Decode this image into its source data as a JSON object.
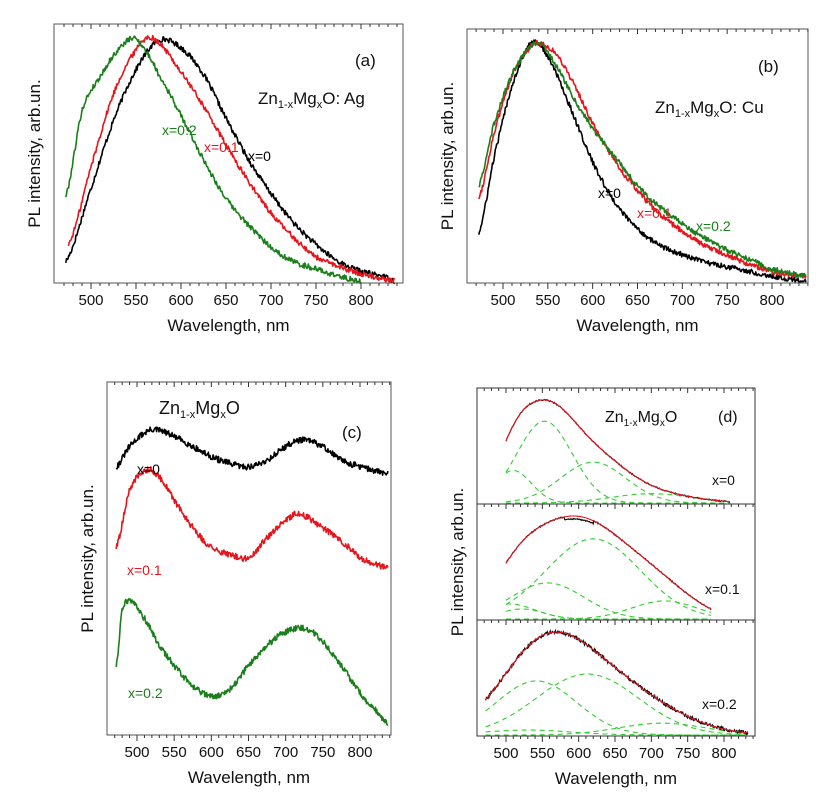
{
  "figure": {
    "panels": [
      "(a)",
      "(b)",
      "(c)",
      "(d)"
    ]
  },
  "colors": {
    "x0": "#000000",
    "x01": "#e8131b",
    "x02": "#1a7f1a",
    "fit": "#e8131b",
    "component": "#33cc33"
  },
  "chart_data": [
    {
      "id": "a",
      "type": "line",
      "panel_label": "(a)",
      "title": "Zn1-xMgxO: Ag",
      "title_parts": {
        "base1": "Zn",
        "sub1": "1-x",
        "base2": "Mg",
        "sub2": "x",
        "base3": "O: Ag"
      },
      "xlabel": "Wavelength, nm",
      "ylabel": "PL intensity, arb.un.",
      "xlim": [
        460,
        840
      ],
      "ylim": [
        0,
        1.0
      ],
      "xticks": [
        500,
        550,
        600,
        650,
        700,
        750,
        800
      ],
      "yticks": [],
      "grid": false,
      "series": [
        {
          "name": "x=0",
          "color": "#000000",
          "peak_nm": 575,
          "x_range": [
            472,
            838
          ],
          "points": [
            [
              472,
              0.08
            ],
            [
              500,
              0.38
            ],
            [
              525,
              0.66
            ],
            [
              550,
              0.87
            ],
            [
              575,
              0.99
            ],
            [
              600,
              0.96
            ],
            [
              625,
              0.85
            ],
            [
              650,
              0.67
            ],
            [
              675,
              0.5
            ],
            [
              700,
              0.36
            ],
            [
              725,
              0.24
            ],
            [
              750,
              0.15
            ],
            [
              775,
              0.08
            ],
            [
              800,
              0.04
            ],
            [
              825,
              0.02
            ],
            [
              838,
              0.0
            ]
          ]
        },
        {
          "name": "x=0.1",
          "color": "#e8131b",
          "peak_nm": 563,
          "x_range": [
            475,
            838
          ],
          "points": [
            [
              475,
              0.15
            ],
            [
              500,
              0.47
            ],
            [
              525,
              0.77
            ],
            [
              550,
              0.95
            ],
            [
              563,
              1.0
            ],
            [
              575,
              0.98
            ],
            [
              600,
              0.86
            ],
            [
              625,
              0.72
            ],
            [
              650,
              0.56
            ],
            [
              675,
              0.41
            ],
            [
              700,
              0.28
            ],
            [
              725,
              0.18
            ],
            [
              750,
              0.1
            ],
            [
              775,
              0.06
            ],
            [
              800,
              0.03
            ],
            [
              838,
              0.0
            ]
          ]
        },
        {
          "name": "x=0.2",
          "color": "#1a7f1a",
          "peak_nm": 548,
          "x_range": [
            472,
            800
          ],
          "points": [
            [
              472,
              0.35
            ],
            [
              490,
              0.7
            ],
            [
              510,
              0.84
            ],
            [
              530,
              0.95
            ],
            [
              548,
              1.0
            ],
            [
              560,
              0.95
            ],
            [
              575,
              0.85
            ],
            [
              600,
              0.68
            ],
            [
              625,
              0.5
            ],
            [
              650,
              0.34
            ],
            [
              675,
              0.23
            ],
            [
              700,
              0.14
            ],
            [
              725,
              0.08
            ],
            [
              750,
              0.05
            ],
            [
              775,
              0.02
            ],
            [
              800,
              0.0
            ]
          ]
        }
      ],
      "annotations": [
        {
          "text": "x=0.2",
          "color": "#1a7f1a"
        },
        {
          "text": "x=0.1",
          "color": "#e8131b"
        },
        {
          "text": "x=0",
          "color": "#000000"
        }
      ]
    },
    {
      "id": "b",
      "type": "line",
      "panel_label": "(b)",
      "title": "Zn1-xMgxO: Cu",
      "title_parts": {
        "base1": "Zn",
        "sub1": "1-x",
        "base2": "Mg",
        "sub2": "x",
        "base3": "O: Cu"
      },
      "xlabel": "Wavelength, nm",
      "ylabel": "PL intensity, arb.un.",
      "xlim": [
        460,
        840
      ],
      "ylim": [
        0,
        1.0
      ],
      "xticks": [
        500,
        550,
        600,
        650,
        700,
        750,
        800
      ],
      "yticks": [],
      "grid": false,
      "series": [
        {
          "name": "x=0",
          "color": "#000000",
          "peak_nm": 532,
          "x_range": [
            473,
            838
          ],
          "points": [
            [
              473,
              0.2
            ],
            [
              490,
              0.52
            ],
            [
              510,
              0.82
            ],
            [
              532,
              1.0
            ],
            [
              550,
              0.94
            ],
            [
              575,
              0.73
            ],
            [
              600,
              0.5
            ],
            [
              625,
              0.33
            ],
            [
              650,
              0.22
            ],
            [
              675,
              0.15
            ],
            [
              700,
              0.11
            ],
            [
              725,
              0.08
            ],
            [
              750,
              0.06
            ],
            [
              775,
              0.04
            ],
            [
              800,
              0.02
            ],
            [
              838,
              0.0
            ]
          ]
        },
        {
          "name": "x=0.1",
          "color": "#e8131b",
          "peak_nm": 540,
          "x_range": [
            473,
            838
          ],
          "points": [
            [
              473,
              0.35
            ],
            [
              490,
              0.62
            ],
            [
              510,
              0.86
            ],
            [
              530,
              0.98
            ],
            [
              540,
              1.0
            ],
            [
              560,
              0.95
            ],
            [
              580,
              0.82
            ],
            [
              600,
              0.66
            ],
            [
              625,
              0.5
            ],
            [
              650,
              0.38
            ],
            [
              675,
              0.28
            ],
            [
              700,
              0.21
            ],
            [
              725,
              0.15
            ],
            [
              750,
              0.11
            ],
            [
              775,
              0.07
            ],
            [
              800,
              0.04
            ],
            [
              838,
              0.02
            ]
          ]
        },
        {
          "name": "x=0.2",
          "color": "#1a7f1a",
          "peak_nm": 538,
          "x_range": [
            473,
            838
          ],
          "points": [
            [
              473,
              0.4
            ],
            [
              490,
              0.66
            ],
            [
              510,
              0.87
            ],
            [
              538,
              1.0
            ],
            [
              560,
              0.9
            ],
            [
              580,
              0.76
            ],
            [
              600,
              0.64
            ],
            [
              625,
              0.52
            ],
            [
              650,
              0.4
            ],
            [
              675,
              0.31
            ],
            [
              700,
              0.24
            ],
            [
              725,
              0.18
            ],
            [
              750,
              0.13
            ],
            [
              775,
              0.09
            ],
            [
              800,
              0.05
            ],
            [
              838,
              0.02
            ]
          ]
        }
      ],
      "annotations": [
        {
          "text": "x=0",
          "color": "#000000"
        },
        {
          "text": "x=0.1",
          "color": "#e8131b"
        },
        {
          "text": "x=0.2",
          "color": "#1a7f1a"
        }
      ]
    },
    {
      "id": "c",
      "type": "line",
      "panel_label": "(c)",
      "title": "Zn1-xMgxO",
      "title_parts": {
        "base1": "Zn",
        "sub1": "1-x",
        "base2": "Mg",
        "sub2": "x",
        "base3": "O"
      },
      "xlabel": "Wavelength, nm",
      "ylabel": "PL intensity, arb.un.",
      "xlim": [
        460,
        840
      ],
      "ylim": [
        0,
        1.0
      ],
      "xticks": [
        500,
        550,
        600,
        650,
        700,
        750,
        800
      ],
      "yticks": [],
      "grid": false,
      "stacked_offset": true,
      "series": [
        {
          "name": "x=0",
          "color": "#000000",
          "peaks_nm": [
            525,
            722
          ],
          "x_range": [
            472,
            838
          ],
          "points": [
            [
              472,
              0.79
            ],
            [
              490,
              0.85
            ],
            [
              510,
              0.89
            ],
            [
              525,
              0.9
            ],
            [
              550,
              0.88
            ],
            [
              575,
              0.85
            ],
            [
              600,
              0.82
            ],
            [
              625,
              0.8
            ],
            [
              650,
              0.79
            ],
            [
              675,
              0.81
            ],
            [
              700,
              0.85
            ],
            [
              722,
              0.87
            ],
            [
              750,
              0.85
            ],
            [
              775,
              0.81
            ],
            [
              800,
              0.79
            ],
            [
              838,
              0.77
            ]
          ]
        },
        {
          "name": "x=0.1",
          "color": "#e8131b",
          "peaks_nm": [
            512,
            718
          ],
          "x_range": [
            472,
            838
          ],
          "points": [
            [
              472,
              0.55
            ],
            [
              490,
              0.72
            ],
            [
              512,
              0.78
            ],
            [
              530,
              0.76
            ],
            [
              550,
              0.69
            ],
            [
              575,
              0.61
            ],
            [
              600,
              0.55
            ],
            [
              625,
              0.53
            ],
            [
              650,
              0.52
            ],
            [
              675,
              0.58
            ],
            [
              700,
              0.63
            ],
            [
              718,
              0.65
            ],
            [
              750,
              0.61
            ],
            [
              775,
              0.57
            ],
            [
              800,
              0.52
            ],
            [
              838,
              0.49
            ]
          ]
        },
        {
          "name": "x=0.2",
          "color": "#1a7f1a",
          "peaks_nm": [
            490,
            728
          ],
          "x_range": [
            472,
            838
          ],
          "points": [
            [
              472,
              0.2
            ],
            [
              480,
              0.36
            ],
            [
              490,
              0.39
            ],
            [
              510,
              0.34
            ],
            [
              530,
              0.26
            ],
            [
              550,
              0.2
            ],
            [
              575,
              0.14
            ],
            [
              600,
              0.11
            ],
            [
              625,
              0.13
            ],
            [
              650,
              0.2
            ],
            [
              675,
              0.26
            ],
            [
              700,
              0.3
            ],
            [
              728,
              0.31
            ],
            [
              750,
              0.27
            ],
            [
              775,
              0.2
            ],
            [
              800,
              0.12
            ],
            [
              820,
              0.07
            ],
            [
              838,
              0.03
            ]
          ]
        }
      ],
      "annotations": [
        {
          "text": "x=0",
          "color": "#000000"
        },
        {
          "text": "x=0.1",
          "color": "#e8131b"
        },
        {
          "text": "x=0.2",
          "color": "#1a7f1a"
        }
      ]
    },
    {
      "id": "d",
      "type": "line",
      "panel_label": "(d)",
      "title": "Zn1-xMgxO",
      "title_parts": {
        "base1": "Zn",
        "sub1": "1-x",
        "base2": "Mg",
        "sub2": "x",
        "base3": "O"
      },
      "xlabel": "Wavelength, nm",
      "ylabel": "PL intensity, arb.un.",
      "xlim": [
        460,
        840
      ],
      "xticks": [
        500,
        550,
        600,
        650,
        700,
        750,
        800
      ],
      "yticks": [],
      "grid": false,
      "subplots": [
        {
          "name": "x=0",
          "x_range": [
            500,
            808
          ],
          "measured_color": "#000000",
          "fit_color": "#e8131b",
          "components": [
            {
              "center_nm": 510,
              "amplitude": 0.35,
              "width_nm": 25
            },
            {
              "center_nm": 553,
              "amplitude": 0.88,
              "width_nm": 38
            },
            {
              "center_nm": 620,
              "amplitude": 0.44,
              "width_nm": 45
            },
            {
              "center_nm": 700,
              "amplitude": 0.1,
              "width_nm": 55
            }
          ]
        },
        {
          "name": "x=0.1",
          "x_range": [
            500,
            783
          ],
          "measured_color": "#000000",
          "fit_color": "#e8131b",
          "components": [
            {
              "center_nm": 505,
              "amplitude": 0.15,
              "width_nm": 35
            },
            {
              "center_nm": 522,
              "amplitude": 0.1,
              "width_nm": 30
            },
            {
              "center_nm": 557,
              "amplitude": 0.36,
              "width_nm": 50
            },
            {
              "center_nm": 620,
              "amplitude": 0.8,
              "width_nm": 65
            },
            {
              "center_nm": 718,
              "amplitude": 0.18,
              "width_nm": 45
            }
          ]
        },
        {
          "name": "x=0.2",
          "x_range": [
            472,
            833
          ],
          "measured_color": "#000000",
          "fit_color": "#e8131b",
          "components": [
            {
              "center_nm": 530,
              "amplitude": 0.05,
              "width_nm": 60
            },
            {
              "center_nm": 542,
              "amplitude": 0.55,
              "width_nm": 55
            },
            {
              "center_nm": 612,
              "amplitude": 0.62,
              "width_nm": 70
            },
            {
              "center_nm": 715,
              "amplitude": 0.12,
              "width_nm": 60
            }
          ]
        }
      ]
    }
  ]
}
